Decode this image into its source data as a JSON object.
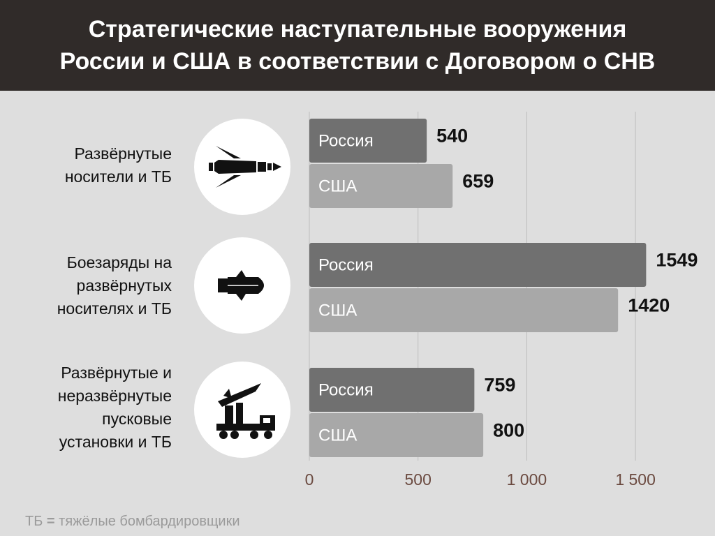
{
  "header": {
    "title_line1": "Стратегические наступательные вооружения",
    "title_line2": "России и США в соответствии с Договором о СНВ"
  },
  "icons": [
    "bomber-icon",
    "warhead-icon",
    "missile-launcher-icon"
  ],
  "chart_data": {
    "type": "bar",
    "orientation": "horizontal",
    "categories": [
      [
        "Развёрнутые",
        "носители и ТБ"
      ],
      [
        "Боезаряды на",
        "развёрнутых",
        "носителях и ТБ"
      ],
      [
        "Развёрнутые и",
        "неразвёрнутые",
        "пусковые",
        "установки и ТБ"
      ]
    ],
    "series": [
      {
        "name": "Россия",
        "values": [
          540,
          1549,
          759
        ],
        "color": "#707070"
      },
      {
        "name": "США",
        "values": [
          659,
          1420,
          800
        ],
        "color": "#a8a8a8"
      }
    ],
    "value_labels": {
      "Россия": [
        "540",
        "1549",
        "759"
      ],
      "США": [
        "659",
        "1420",
        "800"
      ]
    },
    "xlim": [
      0,
      1650
    ],
    "ticks": [
      0,
      500,
      1000,
      1500
    ],
    "tick_labels": [
      "0",
      "500",
      "1 000",
      "1 500"
    ],
    "grid": true,
    "tick_color": "#6b4a40"
  },
  "footnote": {
    "abbr": "ТБ",
    "sep": "=",
    "text": "тяжёлые бомбардировщики"
  }
}
